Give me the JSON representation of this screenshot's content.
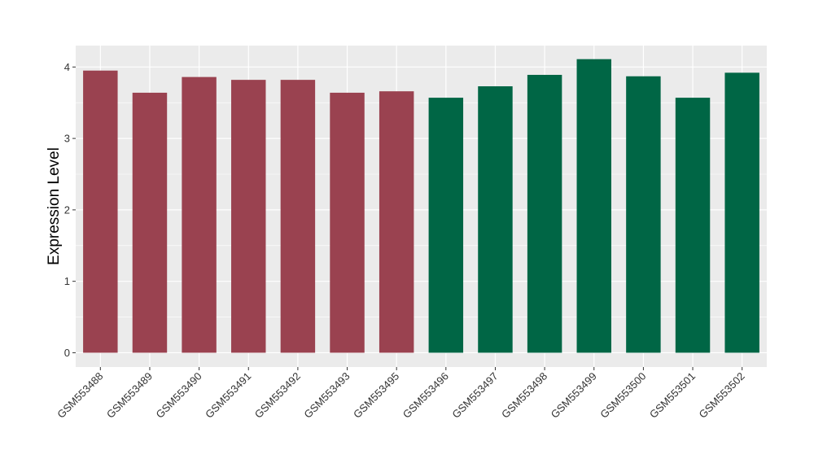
{
  "chart_data": {
    "type": "bar",
    "title": "",
    "xlabel": "",
    "ylabel": "Expression Level",
    "categories": [
      "GSM553488",
      "GSM553489",
      "GSM553490",
      "GSM553491",
      "GSM553492",
      "GSM553493",
      "GSM553495",
      "GSM553496",
      "GSM553497",
      "GSM553498",
      "GSM553499",
      "GSM553500",
      "GSM553501",
      "GSM553502"
    ],
    "values": [
      3.95,
      3.64,
      3.86,
      3.82,
      3.82,
      3.64,
      3.66,
      3.57,
      3.73,
      3.89,
      4.11,
      3.87,
      3.57,
      3.92
    ],
    "bar_colors": [
      "#9a4250",
      "#9a4250",
      "#9a4250",
      "#9a4250",
      "#9a4250",
      "#9a4250",
      "#9a4250",
      "#006645",
      "#006645",
      "#006645",
      "#006645",
      "#006645",
      "#006645",
      "#006645"
    ],
    "ylim": [
      -0.2,
      4.3
    ],
    "yticks": [
      0,
      1,
      2,
      3,
      4
    ],
    "grid": true,
    "legend": "none",
    "panel_color": "#ebebeb",
    "grid_color": "#ffffff"
  }
}
